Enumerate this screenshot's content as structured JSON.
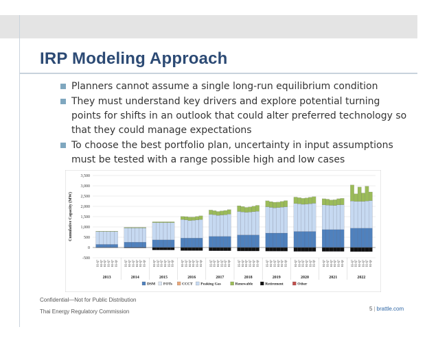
{
  "slide": {
    "title": "IRP Modeling Approach",
    "bullets": [
      "Planners cannot assume a single long-run equilibrium condition",
      "They must understand key drivers and explore potential turning points for shifts in an outlook that could alter preferred technology so that they could manage expectations",
      "To choose the best portfolio plan, uncertainty in input assumptions must be tested with a range possible high and low cases"
    ]
  },
  "footer": {
    "confidential": "Confidential—Not for Public Distribution",
    "organization": "Thai Energy Regulatory Commission",
    "page_number": "5",
    "separator": "|",
    "site": "brattle.com"
  },
  "colors": {
    "title": "#2c4a74",
    "bullet": "#7fa7bf",
    "DSM": "#4f81bd",
    "FOTs": "#dce6f2",
    "CCCT": "#e8a87c",
    "Peaking Gas": "#c6d9f1",
    "Renewable": "#9bbb59",
    "Retirement": "#111111",
    "Other": "#c0504d"
  },
  "chart_data": {
    "type": "bar",
    "stacked": true,
    "ylabel": "Cumulative Capacity (MW)",
    "ylim": [
      -500,
      3500
    ],
    "yticks": [
      "-500",
      "0",
      "500",
      "1,000",
      "1,500",
      "2,000",
      "2,500",
      "3,000",
      "3,500"
    ],
    "grid": true,
    "legend_position": "bottom",
    "groups": [
      "2013",
      "2014",
      "2015",
      "2016",
      "2017",
      "2018",
      "2019",
      "2020",
      "2021",
      "2022"
    ],
    "cases": [
      "EG-Q7",
      "EG-Q7",
      "EG-Q7",
      "EG-Q7",
      "EG-Q7",
      "EG-Q0"
    ],
    "series": [
      {
        "name": "DSM",
        "values": [
          [
            150,
            150,
            150,
            150,
            150,
            150
          ],
          [
            260,
            260,
            260,
            260,
            260,
            260
          ],
          [
            370,
            370,
            370,
            370,
            370,
            370
          ],
          [
            460,
            460,
            460,
            460,
            460,
            460
          ],
          [
            540,
            540,
            540,
            540,
            540,
            540
          ],
          [
            610,
            610,
            610,
            610,
            610,
            610
          ],
          [
            700,
            700,
            700,
            700,
            700,
            700
          ],
          [
            780,
            780,
            780,
            780,
            780,
            780
          ],
          [
            870,
            870,
            870,
            870,
            870,
            870
          ],
          [
            940,
            940,
            940,
            940,
            940,
            940
          ]
        ]
      },
      {
        "name": "FOTs",
        "values": [
          [
            0,
            0,
            0,
            0,
            0,
            0
          ],
          [
            0,
            0,
            0,
            0,
            0,
            0
          ],
          [
            0,
            0,
            0,
            0,
            0,
            0
          ],
          [
            0,
            0,
            0,
            0,
            0,
            0
          ],
          [
            0,
            0,
            0,
            0,
            0,
            0
          ],
          [
            0,
            0,
            0,
            0,
            0,
            0
          ],
          [
            0,
            0,
            0,
            0,
            0,
            0
          ],
          [
            0,
            0,
            0,
            0,
            0,
            0
          ],
          [
            0,
            0,
            0,
            0,
            0,
            0
          ],
          [
            0,
            0,
            0,
            0,
            0,
            0
          ]
        ]
      },
      {
        "name": "CCCT",
        "values": [
          [
            0,
            0,
            0,
            0,
            0,
            0
          ],
          [
            0,
            0,
            0,
            0,
            0,
            0
          ],
          [
            0,
            0,
            0,
            0,
            0,
            0
          ],
          [
            0,
            0,
            0,
            0,
            0,
            0
          ],
          [
            0,
            0,
            0,
            0,
            0,
            0
          ],
          [
            0,
            0,
            0,
            0,
            0,
            0
          ],
          [
            0,
            0,
            0,
            0,
            0,
            0
          ],
          [
            0,
            0,
            0,
            0,
            0,
            0
          ],
          [
            0,
            0,
            0,
            0,
            0,
            0
          ],
          [
            0,
            0,
            0,
            0,
            0,
            0
          ]
        ]
      },
      {
        "name": "Peaking Gas",
        "values": [
          [
            620,
            620,
            620,
            620,
            620,
            620
          ],
          [
            690,
            690,
            690,
            690,
            690,
            690
          ],
          [
            840,
            840,
            840,
            840,
            840,
            840
          ],
          [
            900,
            880,
            850,
            860,
            880,
            900
          ],
          [
            1070,
            1050,
            1020,
            1040,
            1050,
            1080
          ],
          [
            1140,
            1120,
            1100,
            1110,
            1130,
            1150
          ],
          [
            1280,
            1250,
            1230,
            1240,
            1260,
            1280
          ],
          [
            1360,
            1340,
            1320,
            1330,
            1350,
            1370
          ],
          [
            1200,
            1190,
            1180,
            1170,
            1200,
            1210
          ],
          [
            1320,
            1300,
            1300,
            1300,
            1320,
            1340
          ]
        ]
      },
      {
        "name": "Renewable",
        "values": [
          [
            20,
            20,
            20,
            20,
            20,
            20
          ],
          [
            30,
            30,
            30,
            30,
            30,
            30
          ],
          [
            40,
            40,
            40,
            40,
            40,
            40
          ],
          [
            150,
            160,
            170,
            160,
            170,
            180
          ],
          [
            210,
            200,
            190,
            200,
            210,
            220
          ],
          [
            280,
            260,
            240,
            250,
            270,
            290
          ],
          [
            290,
            280,
            270,
            270,
            280,
            300
          ],
          [
            310,
            300,
            290,
            300,
            310,
            320
          ],
          [
            300,
            290,
            260,
            280,
            300,
            310
          ],
          [
            780,
            370,
            700,
            410,
            720,
            420
          ]
        ]
      },
      {
        "name": "Retirement",
        "values": [
          [
            -10,
            -10,
            -10,
            -10,
            -10,
            -10
          ],
          [
            -20,
            -20,
            -20,
            -20,
            -20,
            -20
          ],
          [
            -120,
            -120,
            -120,
            -120,
            -120,
            -120
          ],
          [
            -150,
            -150,
            -150,
            -150,
            -150,
            -150
          ],
          [
            -160,
            -160,
            -160,
            -160,
            -160,
            -160
          ],
          [
            -170,
            -170,
            -170,
            -170,
            -170,
            -170
          ],
          [
            -180,
            -180,
            -180,
            -180,
            -180,
            -180
          ],
          [
            -190,
            -190,
            -190,
            -190,
            -190,
            -190
          ],
          [
            -190,
            -190,
            -190,
            -190,
            -190,
            -190
          ],
          [
            -200,
            -200,
            -200,
            -200,
            -200,
            -200
          ]
        ]
      },
      {
        "name": "Other",
        "values": [
          [
            0,
            0,
            0,
            0,
            0,
            0
          ],
          [
            0,
            0,
            0,
            0,
            0,
            0
          ],
          [
            0,
            0,
            0,
            0,
            0,
            0
          ],
          [
            0,
            0,
            0,
            0,
            0,
            0
          ],
          [
            0,
            0,
            0,
            0,
            0,
            0
          ],
          [
            0,
            0,
            0,
            0,
            0,
            0
          ],
          [
            0,
            0,
            0,
            0,
            0,
            0
          ],
          [
            0,
            0,
            0,
            0,
            0,
            0
          ],
          [
            0,
            0,
            0,
            0,
            0,
            0
          ],
          [
            0,
            0,
            0,
            0,
            0,
            0
          ]
        ]
      }
    ]
  }
}
